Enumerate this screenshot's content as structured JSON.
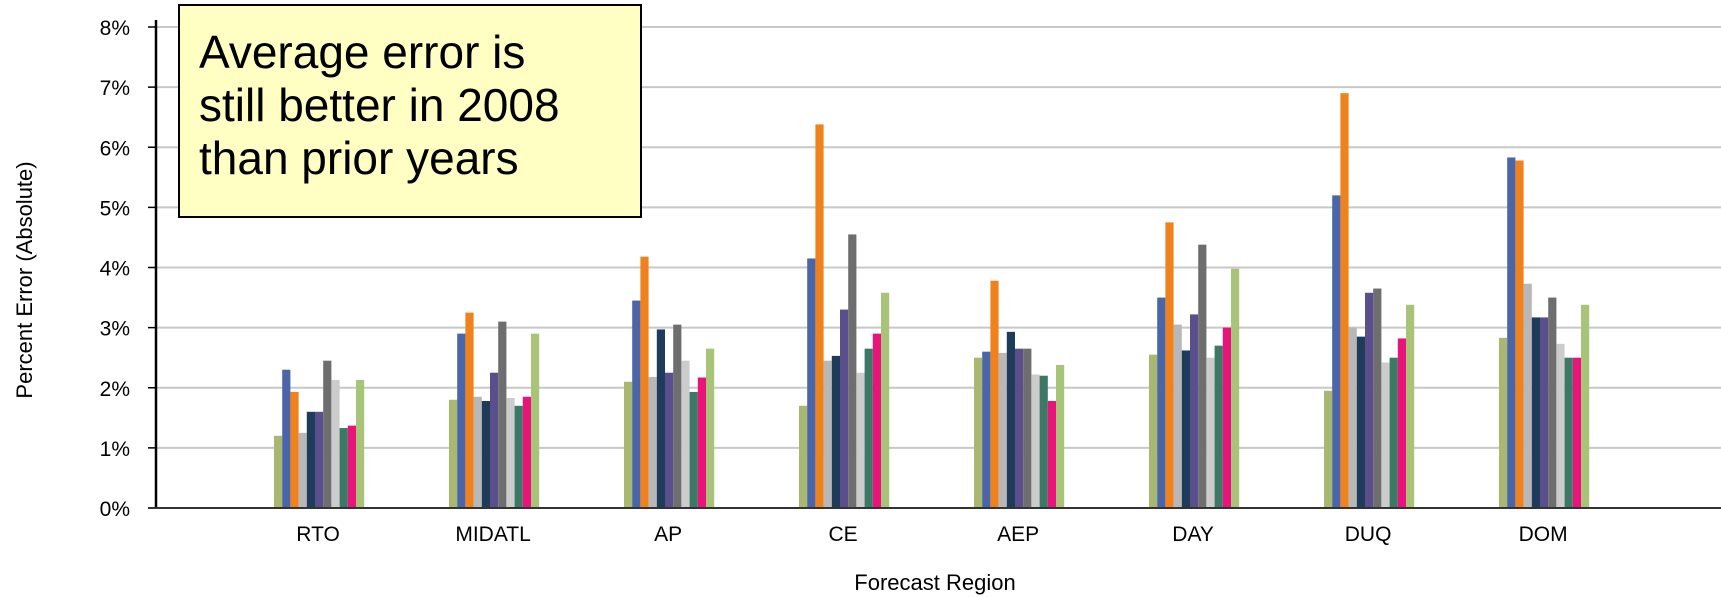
{
  "chart_data": {
    "type": "bar",
    "title": "",
    "xlabel": "Forecast Region",
    "ylabel": "Percent Error (Absolute)",
    "ylim": [
      0,
      8
    ],
    "y_ticks": [
      "0%",
      "1%",
      "2%",
      "3%",
      "4%",
      "5%",
      "6%",
      "7%",
      "8%"
    ],
    "grid": true,
    "legend": "none",
    "categories": [
      "RTO",
      "MIDATL",
      "AP",
      "CE",
      "AEP",
      "DAY",
      "DUQ",
      "DOM"
    ],
    "colors": [
      "#a8b870",
      "#4a66a8",
      "#f0821e",
      "#b8b8b8",
      "#1e3c5a",
      "#5a4e8c",
      "#6e6e6e",
      "#cccccc",
      "#3c7866",
      "#e8147a",
      "#a8c478"
    ],
    "series": [
      {
        "values": [
          1.2,
          1.8,
          2.1,
          1.7,
          2.5,
          2.55,
          1.95,
          2.83
        ]
      },
      {
        "values": [
          2.3,
          2.9,
          3.45,
          4.15,
          2.6,
          3.5,
          5.2,
          5.83
        ]
      },
      {
        "values": [
          1.93,
          3.25,
          4.18,
          6.38,
          3.78,
          4.75,
          6.9,
          5.78
        ]
      },
      {
        "values": [
          1.25,
          1.85,
          2.18,
          2.45,
          2.58,
          3.05,
          3.0,
          3.73
        ]
      },
      {
        "values": [
          1.6,
          1.78,
          2.97,
          2.53,
          2.93,
          2.62,
          2.85,
          3.17
        ]
      },
      {
        "values": [
          1.6,
          2.25,
          2.25,
          3.3,
          2.65,
          3.22,
          3.58,
          3.17
        ]
      },
      {
        "values": [
          2.45,
          3.1,
          3.05,
          4.55,
          2.65,
          4.38,
          3.65,
          3.5
        ]
      },
      {
        "values": [
          2.13,
          1.83,
          2.45,
          2.25,
          2.22,
          2.5,
          2.42,
          2.73
        ]
      },
      {
        "values": [
          1.33,
          1.7,
          1.93,
          2.65,
          2.2,
          2.7,
          2.5,
          2.5
        ]
      },
      {
        "values": [
          1.37,
          1.85,
          2.17,
          2.9,
          1.78,
          3.0,
          2.82,
          2.5
        ]
      },
      {
        "values": [
          2.13,
          2.9,
          2.65,
          3.58,
          2.38,
          3.98,
          3.38,
          3.38
        ]
      }
    ]
  },
  "annotation": {
    "lines": [
      "Average error is",
      "still better in 2008",
      "than prior years"
    ]
  }
}
